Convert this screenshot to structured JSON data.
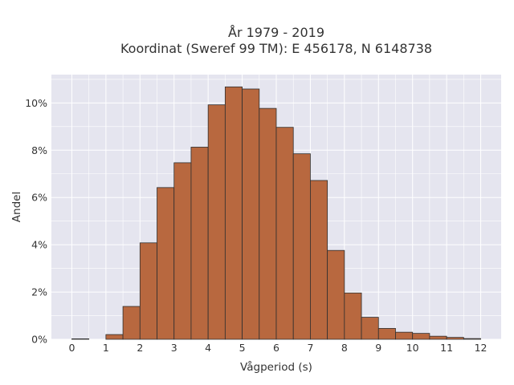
{
  "chart_data": {
    "type": "bar",
    "title": "År 1979 - 2019",
    "subtitle": "Koordinat (Sweref 99 TM): E 456178, N 6148738",
    "xlabel": "Vågperiod (s)",
    "ylabel": "Andel",
    "bin_width": 0.5,
    "x_start": 0,
    "values": [
      0.0002,
      0,
      0.002,
      0.0139,
      0.0408,
      0.0642,
      0.0747,
      0.0813,
      0.0992,
      0.1068,
      0.1059,
      0.0977,
      0.0897,
      0.0785,
      0.0672,
      0.0376,
      0.0196,
      0.0093,
      0.0046,
      0.003,
      0.0025,
      0.0013,
      0.0008,
      0.0003
    ],
    "xlim": [
      -0.6,
      12.6
    ],
    "ylim": [
      0,
      0.112
    ],
    "x_ticks": [
      "0",
      "1",
      "2",
      "3",
      "4",
      "5",
      "6",
      "7",
      "8",
      "9",
      "10",
      "11",
      "12"
    ],
    "y_ticks": [
      "0%",
      "2%",
      "4%",
      "6%",
      "8%",
      "10%"
    ],
    "y_tick_values": [
      0,
      0.02,
      0.04,
      0.06,
      0.08,
      0.1
    ],
    "grid": true,
    "colors": {
      "bar_fill": "#b8683f",
      "bar_edge": "#2f2f2f",
      "plot_bg": "#e5e5ef",
      "grid": "#ffffff"
    }
  }
}
